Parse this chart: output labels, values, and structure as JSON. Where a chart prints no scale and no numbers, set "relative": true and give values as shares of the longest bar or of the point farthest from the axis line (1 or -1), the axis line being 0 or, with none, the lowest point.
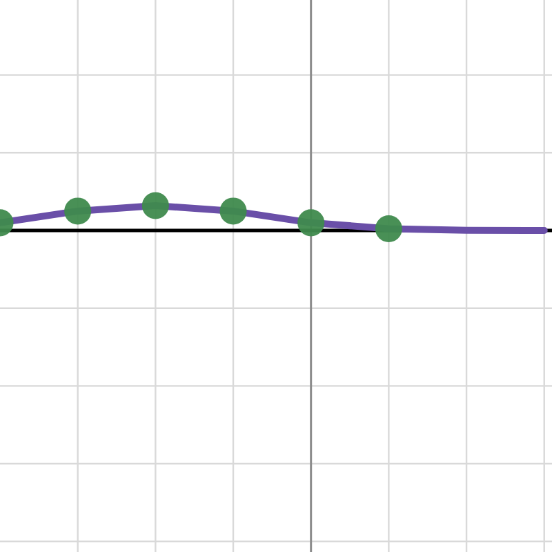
{
  "chart_data": {
    "type": "line",
    "relative": true,
    "grid": true,
    "marker": "circle",
    "categories": [
      null,
      null,
      null,
      null,
      null,
      null,
      null,
      null
    ],
    "series": [
      {
        "color": "#6a4fa8",
        "values": [
          0.31,
          0.78,
          1,
          0.78,
          0.31,
          0.07,
          0.01,
          0
        ],
        "colors": [
          "#3f8a4d",
          "#3f8a4d",
          "#3f8a4d",
          "#3f8a4d",
          "#3f8a4d",
          "#3f8a4d",
          null,
          null
        ]
      }
    ]
  }
}
